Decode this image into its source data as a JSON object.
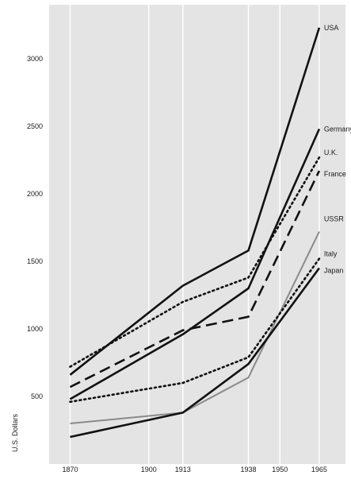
{
  "chart_data": {
    "type": "line",
    "title": "",
    "xlabel": "",
    "ylabel": "U.S. Dollars",
    "xlim": [
      1862,
      1975
    ],
    "ylim": [
      0,
      3400
    ],
    "x_ticks": [
      1870,
      1900,
      1913,
      1938,
      1950,
      1965
    ],
    "y_ticks": [
      500,
      1000,
      1500,
      2000,
      2500,
      3000
    ],
    "grid": true,
    "background": "#e4e4e4",
    "x": [
      1870,
      1913,
      1938,
      1965
    ],
    "series": [
      {
        "name": "USA",
        "values": [
          660,
          1320,
          1580,
          3230
        ],
        "dash": "solid",
        "color": "#111111",
        "width": 2.6
      },
      {
        "name": "Germany",
        "values": [
          480,
          960,
          1300,
          2480
        ],
        "dash": "solid",
        "color": "#111111",
        "width": 2.6
      },
      {
        "name": "U.K.",
        "values": [
          720,
          1200,
          1380,
          2270
        ],
        "dash": "dotted",
        "color": "#111111",
        "width": 2.6
      },
      {
        "name": "France",
        "values": [
          570,
          990,
          1090,
          2170
        ],
        "dash": "dashed",
        "color": "#111111",
        "width": 2.6
      },
      {
        "name": "USSR",
        "values": [
          300,
          380,
          640,
          1720
        ],
        "dash": "solid",
        "color": "#8a8a8a",
        "width": 2.0
      },
      {
        "name": "Italy",
        "values": [
          460,
          600,
          790,
          1520
        ],
        "dash": "dotted",
        "color": "#111111",
        "width": 2.6
      },
      {
        "name": "Japan",
        "values": [
          200,
          380,
          740,
          1450
        ],
        "dash": "solid",
        "color": "#111111",
        "width": 2.6
      }
    ]
  }
}
